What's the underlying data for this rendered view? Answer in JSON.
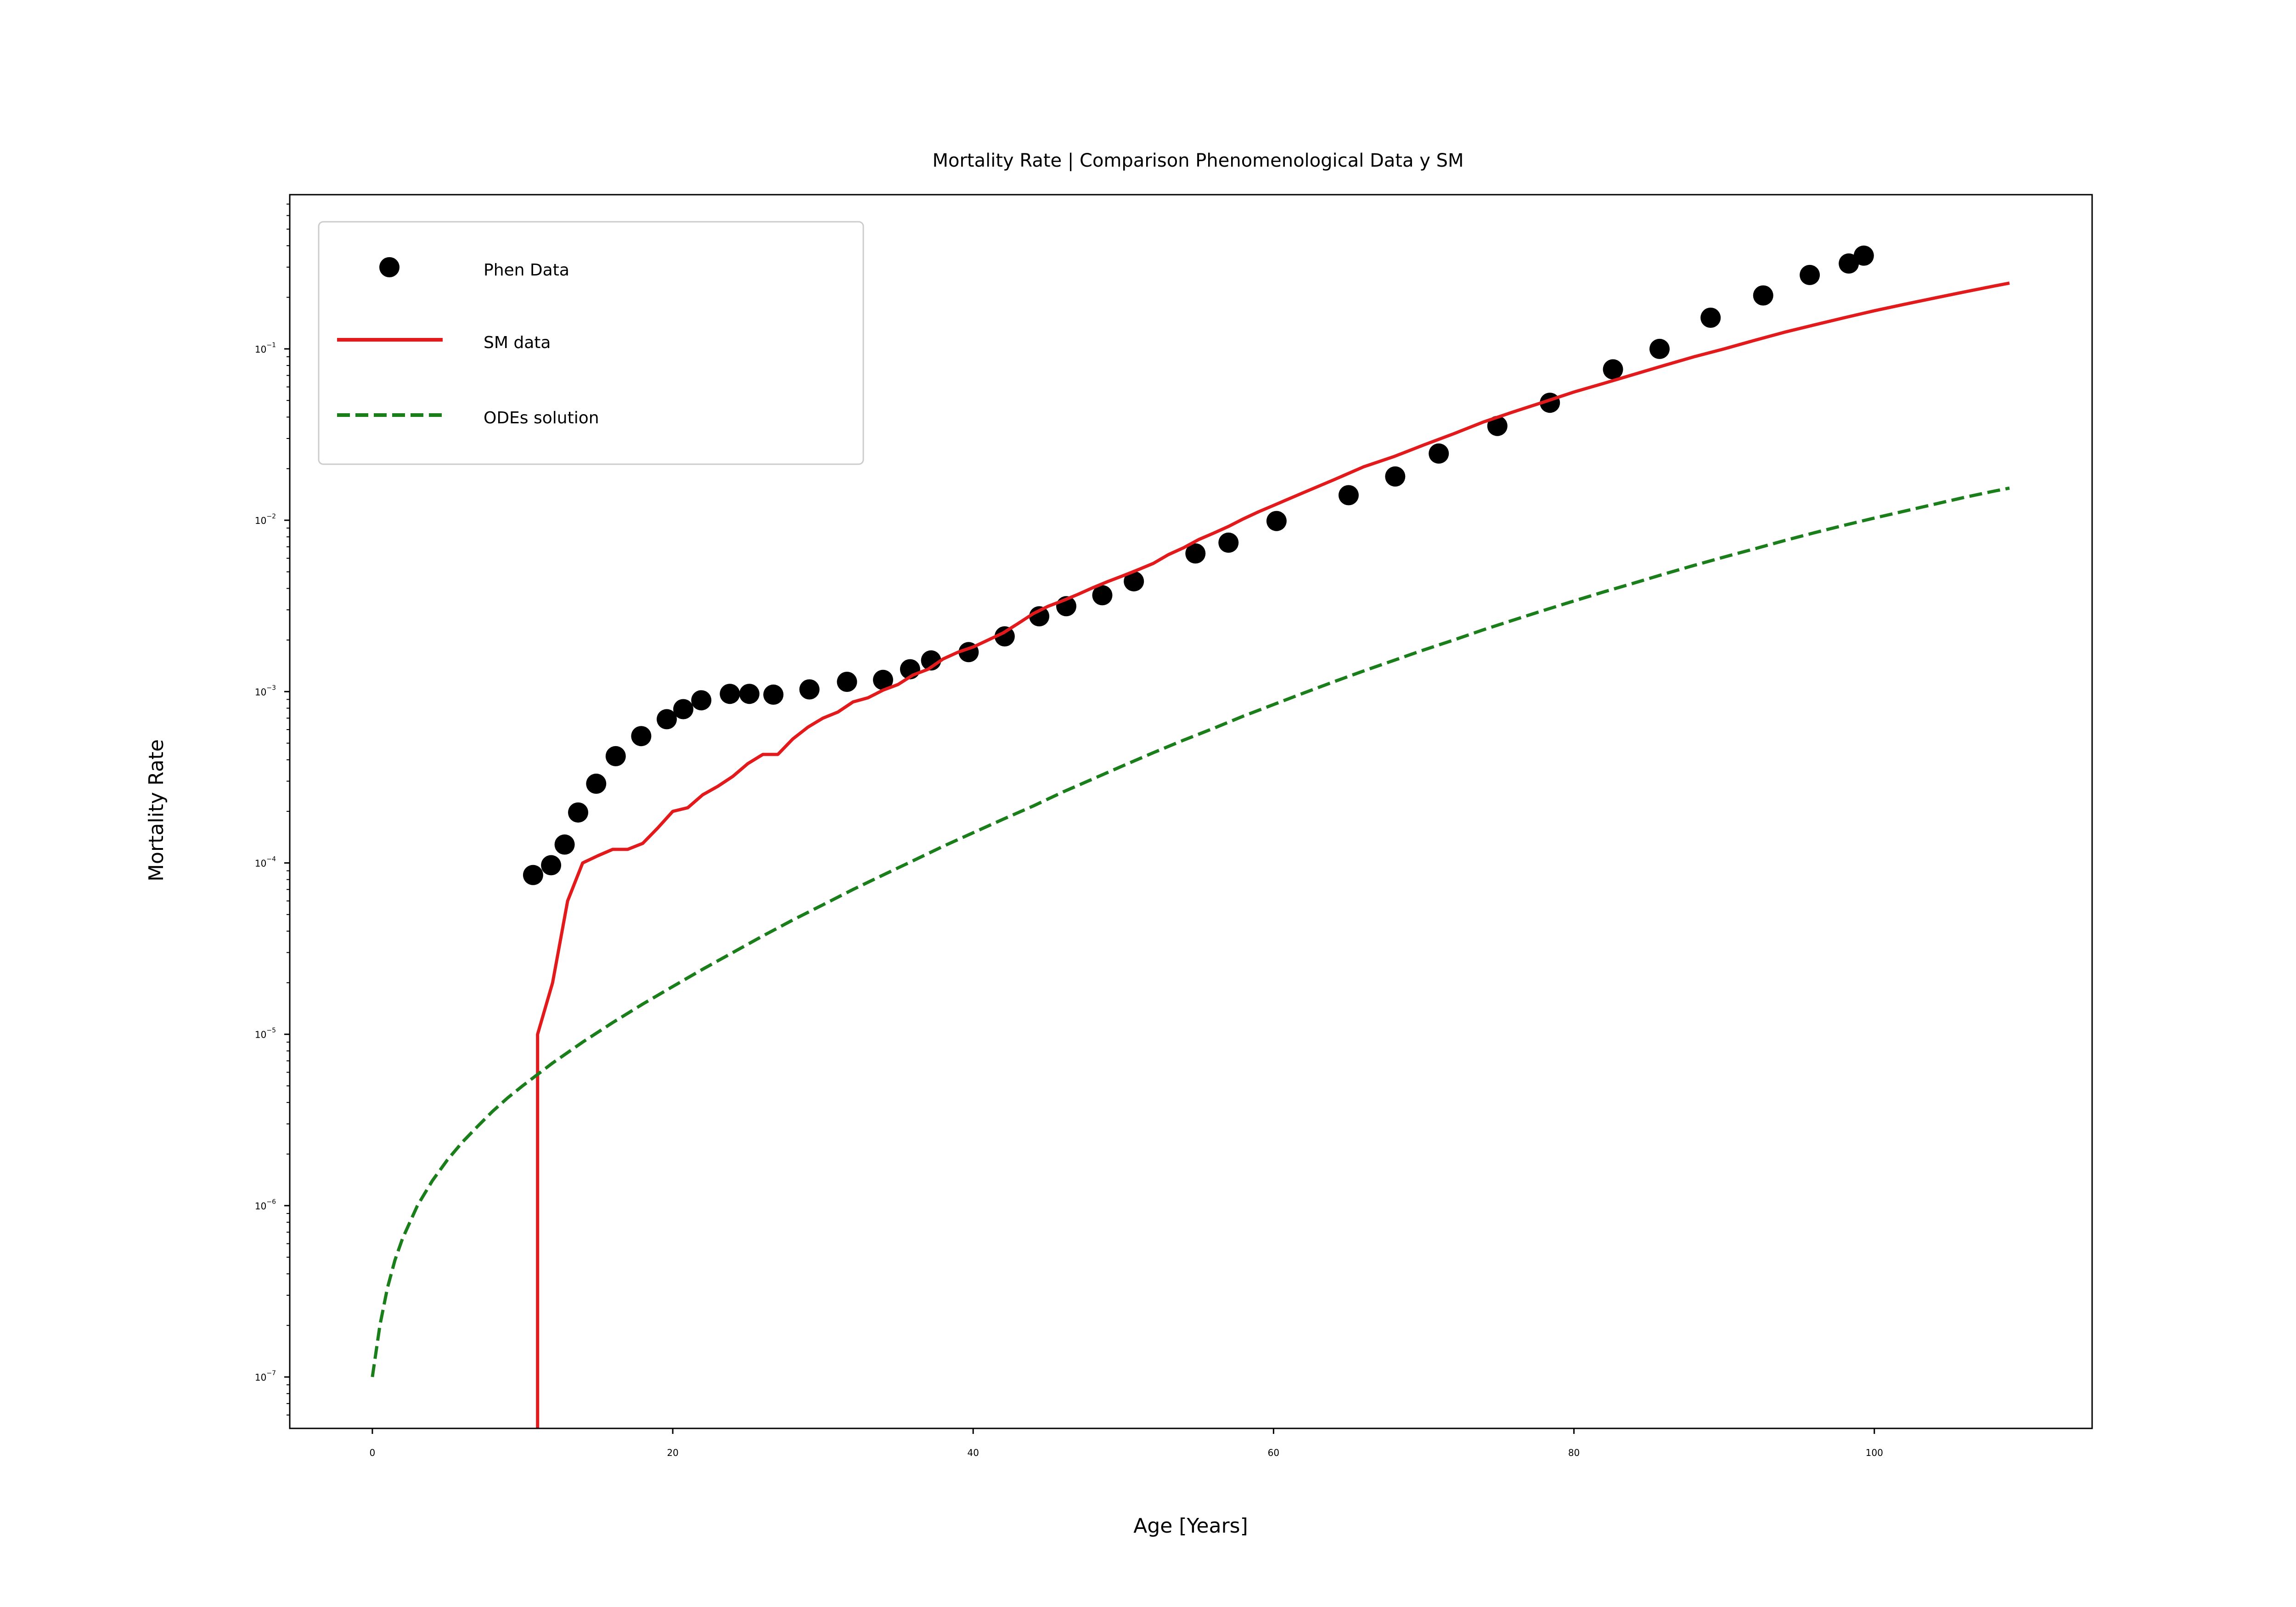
{
  "chart_data": {
    "type": "line",
    "title": "Mortality Rate | Comparison Phenomenological Data y SM",
    "xlabel": "Age [Years]",
    "ylabel": "Mortality Rate",
    "xlim": [
      -5.5,
      114.5
    ],
    "ylim_log10": [
      -7.3,
      -0.1
    ],
    "y_scale": "log",
    "grid": false,
    "legend_position": "upper-left",
    "x_ticks": [
      {
        "value": 0,
        "label": "0"
      },
      {
        "value": 20,
        "label": "20"
      },
      {
        "value": 40,
        "label": "40"
      },
      {
        "value": 60,
        "label": "60"
      },
      {
        "value": 80,
        "label": "80"
      },
      {
        "value": 100,
        "label": "100"
      }
    ],
    "y_ticks": [
      {
        "exp": -1,
        "base": "10",
        "sup": "−1"
      },
      {
        "exp": -2,
        "base": "10",
        "sup": "−2"
      },
      {
        "exp": -3,
        "base": "10",
        "sup": "−3"
      },
      {
        "exp": -4,
        "base": "10",
        "sup": "−4"
      },
      {
        "exp": -5,
        "base": "10",
        "sup": "−5"
      },
      {
        "exp": -6,
        "base": "10",
        "sup": "−6"
      },
      {
        "exp": -7,
        "base": "10",
        "sup": "−7"
      }
    ],
    "series": [
      {
        "name": "Phen Data",
        "kind": "scatter",
        "color": "#000000",
        "points": [
          [
            10.7,
            8.5e-05
          ],
          [
            11.9,
            9.7e-05
          ],
          [
            12.8,
            0.000128
          ],
          [
            13.7,
            0.000197
          ],
          [
            14.9,
            0.00029
          ],
          [
            16.2,
            0.00042
          ],
          [
            17.9,
            0.00055
          ],
          [
            19.6,
            0.00069
          ],
          [
            20.7,
            0.00079
          ],
          [
            21.9,
            0.00089
          ],
          [
            23.8,
            0.00097
          ],
          [
            25.1,
            0.00097
          ],
          [
            26.7,
            0.00096
          ],
          [
            29.1,
            0.00103
          ],
          [
            31.6,
            0.00114
          ],
          [
            34.0,
            0.00117
          ],
          [
            35.8,
            0.00135
          ],
          [
            37.2,
            0.00152
          ],
          [
            39.7,
            0.0017
          ],
          [
            42.1,
            0.0021
          ],
          [
            44.4,
            0.00275
          ],
          [
            46.2,
            0.00315
          ],
          [
            48.6,
            0.00365
          ],
          [
            50.7,
            0.0044
          ],
          [
            54.8,
            0.0064
          ],
          [
            57.0,
            0.0074
          ],
          [
            60.2,
            0.0099
          ],
          [
            65.0,
            0.014
          ],
          [
            68.1,
            0.018
          ],
          [
            71.0,
            0.0245
          ],
          [
            74.9,
            0.0355
          ],
          [
            78.4,
            0.0485
          ],
          [
            82.6,
            0.076
          ],
          [
            85.7,
            0.1
          ],
          [
            89.1,
            0.152
          ],
          [
            92.6,
            0.205
          ],
          [
            95.7,
            0.27
          ],
          [
            98.3,
            0.315
          ],
          [
            99.3,
            0.35
          ]
        ]
      },
      {
        "name": "SM data",
        "kind": "line",
        "color": "#e31a1c",
        "dash": "solid",
        "points": [
          [
            11.0,
            5e-08
          ],
          [
            11.0,
            1e-05
          ],
          [
            12.0,
            2e-05
          ],
          [
            13.0,
            6e-05
          ],
          [
            14.0,
            0.0001
          ],
          [
            15.0,
            0.00011
          ],
          [
            16.0,
            0.00012
          ],
          [
            17.0,
            0.00012
          ],
          [
            18.0,
            0.00013
          ],
          [
            19.0,
            0.00016
          ],
          [
            20.0,
            0.0002
          ],
          [
            21.0,
            0.00021
          ],
          [
            22.0,
            0.00025
          ],
          [
            23.0,
            0.00028
          ],
          [
            24.0,
            0.00032
          ],
          [
            25.0,
            0.00038
          ],
          [
            26.0,
            0.00043
          ],
          [
            27.0,
            0.00043
          ],
          [
            28.0,
            0.00053
          ],
          [
            29.0,
            0.00062
          ],
          [
            30.0,
            0.0007
          ],
          [
            31.0,
            0.00076
          ],
          [
            32.0,
            0.00087
          ],
          [
            33.0,
            0.00092
          ],
          [
            34.0,
            0.00102
          ],
          [
            35.0,
            0.0011
          ],
          [
            36.0,
            0.00125
          ],
          [
            37.0,
            0.00135
          ],
          [
            38.0,
            0.00155
          ],
          [
            39.0,
            0.0017
          ],
          [
            40.0,
            0.00182
          ],
          [
            41.0,
            0.002
          ],
          [
            42.0,
            0.0022
          ],
          [
            43.0,
            0.0025
          ],
          [
            44.0,
            0.00285
          ],
          [
            45.0,
            0.00315
          ],
          [
            46.0,
            0.0034
          ],
          [
            47.0,
            0.0037
          ],
          [
            48.0,
            0.00405
          ],
          [
            49.0,
            0.0044
          ],
          [
            50.0,
            0.00475
          ],
          [
            51.0,
            0.00515
          ],
          [
            52.0,
            0.0056
          ],
          [
            53.0,
            0.0063
          ],
          [
            54.0,
            0.0069
          ],
          [
            55.0,
            0.0077
          ],
          [
            56.0,
            0.0084
          ],
          [
            57.0,
            0.0092
          ],
          [
            58.0,
            0.0102
          ],
          [
            59.0,
            0.0112
          ],
          [
            60.0,
            0.0122
          ],
          [
            62.0,
            0.0145
          ],
          [
            64.0,
            0.0172
          ],
          [
            66.0,
            0.0205
          ],
          [
            68.0,
            0.0235
          ],
          [
            70.0,
            0.0275
          ],
          [
            72.0,
            0.032
          ],
          [
            74.0,
            0.0375
          ],
          [
            76.0,
            0.043
          ],
          [
            78.0,
            0.049
          ],
          [
            80.0,
            0.056
          ],
          [
            82.0,
            0.063
          ],
          [
            84.0,
            0.071
          ],
          [
            86.0,
            0.08
          ],
          [
            88.0,
            0.09
          ],
          [
            90.0,
            0.1
          ],
          [
            92.0,
            0.112
          ],
          [
            94.0,
            0.125
          ],
          [
            96.0,
            0.138
          ],
          [
            98.0,
            0.152
          ],
          [
            100.0,
            0.167
          ],
          [
            102.0,
            0.182
          ],
          [
            104.0,
            0.198
          ],
          [
            106.0,
            0.215
          ],
          [
            108.0,
            0.233
          ],
          [
            109.0,
            0.242
          ]
        ]
      },
      {
        "name": "ODEs solution",
        "kind": "line",
        "color": "#1a7f1a",
        "dash": "dashed",
        "points": [
          [
            0.0,
            1e-07
          ],
          [
            0.5,
            2e-07
          ],
          [
            1.0,
            3.3e-07
          ],
          [
            1.5,
            4.8e-07
          ],
          [
            2.0,
            6.4e-07
          ],
          [
            3.0,
            1e-06
          ],
          [
            4.0,
            1.4e-06
          ],
          [
            5.0,
            1.85e-06
          ],
          [
            6.0,
            2.35e-06
          ],
          [
            7.0,
            2.9e-06
          ],
          [
            8.0,
            3.55e-06
          ],
          [
            9.0,
            4.25e-06
          ],
          [
            10.0,
            5e-06
          ],
          [
            12.0,
            6.8e-06
          ],
          [
            14.0,
            9e-06
          ],
          [
            16.0,
            1.17e-05
          ],
          [
            18.0,
            1.5e-05
          ],
          [
            20.0,
            1.9e-05
          ],
          [
            22.0,
            2.4e-05
          ],
          [
            24.0,
            3e-05
          ],
          [
            26.0,
            3.75e-05
          ],
          [
            28.0,
            4.65e-05
          ],
          [
            30.0,
            5.7e-05
          ],
          [
            32.0,
            7e-05
          ],
          [
            34.0,
            8.5e-05
          ],
          [
            36.0,
            0.000103
          ],
          [
            38.0,
            0.000125
          ],
          [
            40.0,
            0.00015
          ],
          [
            42.0,
            0.00018
          ],
          [
            44.0,
            0.000215
          ],
          [
            46.0,
            0.00026
          ],
          [
            48.0,
            0.00031
          ],
          [
            50.0,
            0.00037
          ],
          [
            52.0,
            0.00044
          ],
          [
            54.0,
            0.00052
          ],
          [
            56.0,
            0.00061
          ],
          [
            58.0,
            0.00072
          ],
          [
            60.0,
            0.00084
          ],
          [
            62.0,
            0.00098
          ],
          [
            64.0,
            0.00114
          ],
          [
            66.0,
            0.00132
          ],
          [
            68.0,
            0.00152
          ],
          [
            70.0,
            0.00175
          ],
          [
            72.0,
            0.002
          ],
          [
            74.0,
            0.0023
          ],
          [
            76.0,
            0.00262
          ],
          [
            78.0,
            0.00298
          ],
          [
            80.0,
            0.00338
          ],
          [
            82.0,
            0.00382
          ],
          [
            84.0,
            0.0043
          ],
          [
            86.0,
            0.00485
          ],
          [
            88.0,
            0.00545
          ],
          [
            90.0,
            0.0061
          ],
          [
            92.0,
            0.0068
          ],
          [
            94.0,
            0.0076
          ],
          [
            96.0,
            0.00845
          ],
          [
            98.0,
            0.00935
          ],
          [
            100.0,
            0.0103
          ],
          [
            102.0,
            0.0113
          ],
          [
            104.0,
            0.0124
          ],
          [
            106.0,
            0.0136
          ],
          [
            108.0,
            0.0148
          ],
          [
            109.0,
            0.0154
          ]
        ]
      }
    ]
  }
}
